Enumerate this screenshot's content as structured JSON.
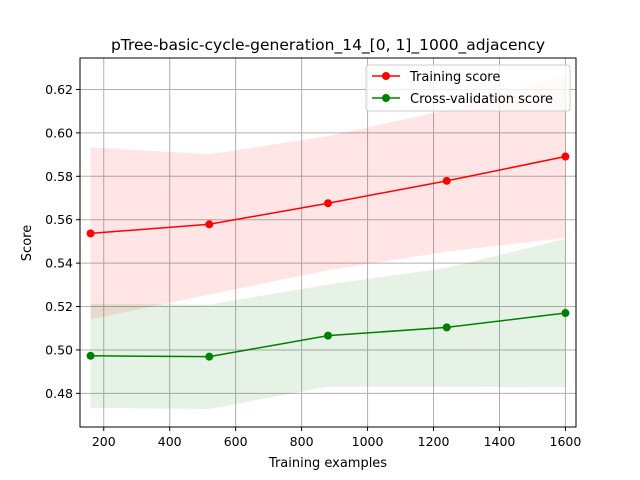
{
  "chart_data": {
    "type": "line",
    "title": "pTree-basic-cycle-generation_14_[0, 1]_1000_adjacency",
    "xlabel": "Training examples",
    "ylabel": "Score",
    "xlim": [
      128,
      1632
    ],
    "ylim": [
      0.4645,
      0.6345
    ],
    "xticks": [
      200,
      400,
      600,
      800,
      1000,
      1200,
      1400,
      1600
    ],
    "xtick_labels": [
      "200",
      "400",
      "600",
      "800",
      "1000",
      "1200",
      "1400",
      "1600"
    ],
    "yticks": [
      0.48,
      0.5,
      0.52,
      0.54,
      0.56,
      0.58,
      0.6,
      0.62
    ],
    "ytick_labels": [
      "0.48",
      "0.50",
      "0.52",
      "0.54",
      "0.56",
      "0.58",
      "0.60",
      "0.62"
    ],
    "grid": true,
    "legend_position": "top-right",
    "x": [
      160,
      520,
      880,
      1240,
      1600
    ],
    "series": [
      {
        "name": "Training score",
        "color": "#ff0000",
        "band_color": "#ff0000",
        "values": [
          0.5537,
          0.5579,
          0.5676,
          0.5779,
          0.5891
        ],
        "lower": [
          0.5141,
          0.5255,
          0.5367,
          0.5453,
          0.5517
        ],
        "upper": [
          0.5933,
          0.5902,
          0.5985,
          0.6105,
          0.6265
        ]
      },
      {
        "name": "Cross-validation score",
        "color": "#008000",
        "band_color": "#008000",
        "values": [
          0.4973,
          0.4969,
          0.5066,
          0.5104,
          0.517
        ],
        "lower": [
          0.4733,
          0.4728,
          0.4831,
          0.4831,
          0.4828
        ],
        "upper": [
          0.5213,
          0.5209,
          0.5301,
          0.5378,
          0.5512
        ]
      }
    ]
  }
}
